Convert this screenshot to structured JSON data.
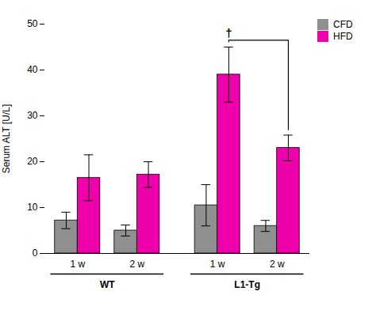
{
  "chart_data": {
    "type": "bar",
    "categories": [
      "1 w",
      "2 w",
      "1 w",
      "2 w"
    ],
    "category_groups": [
      "WT",
      "WT",
      "L1-Tg",
      "L1-Tg"
    ],
    "series": [
      {
        "name": "CFD",
        "color": "#909090",
        "values": [
          7.2,
          5.0,
          10.5,
          6.0
        ],
        "errors": [
          1.8,
          1.2,
          4.5,
          1.2
        ]
      },
      {
        "name": "HFD",
        "color": "#EE00AA",
        "values": [
          16.5,
          17.2,
          39.0,
          23.0
        ],
        "errors": [
          5.0,
          2.8,
          6.0,
          2.8
        ]
      }
    ],
    "ylabel": "Serum ALT [U/L]",
    "ylim": [
      0,
      50
    ],
    "yticks": [
      0,
      10,
      20,
      30,
      40,
      50
    ],
    "legend": "right",
    "annotations": [
      {
        "text": "†",
        "series": "HFD",
        "between": [
          2,
          3
        ]
      }
    ]
  }
}
